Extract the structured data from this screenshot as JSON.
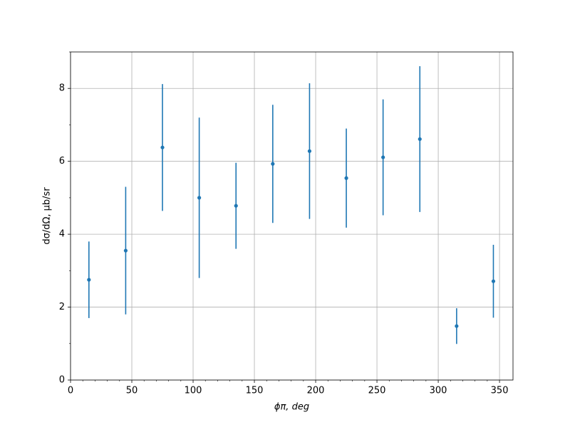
{
  "chart_data": {
    "type": "errorbar",
    "xlabel": "ϕπ, deg",
    "ylabel": "dσ/dΩ, μb/sr",
    "series": [
      {
        "color": "#1f77b4",
        "x": [
          15,
          45,
          75,
          105,
          135,
          165,
          195,
          225,
          255,
          285,
          315,
          345
        ],
        "values": [
          2.75,
          3.55,
          6.38,
          5.0,
          4.78,
          5.93,
          6.28,
          5.54,
          6.11,
          6.61,
          1.48,
          2.71
        ],
        "errors": [
          1.05,
          1.75,
          1.74,
          2.2,
          1.18,
          1.62,
          1.86,
          1.36,
          1.59,
          2.0,
          0.49,
          1.0
        ]
      }
    ],
    "xlim": [
      0,
      361
    ],
    "xticks": [
      0,
      50,
      100,
      150,
      200,
      250,
      300,
      350
    ],
    "xminorticks": [
      10,
      20,
      30,
      40,
      60,
      70,
      80,
      90,
      110,
      120,
      130,
      140,
      160,
      170,
      180,
      190,
      210,
      220,
      230,
      240,
      260,
      270,
      280,
      290,
      310,
      320,
      330,
      340
    ],
    "ylim": [
      0,
      9
    ],
    "yticks": [
      0,
      2,
      4,
      6,
      8
    ],
    "yminorticks": [
      1,
      3,
      5,
      7,
      9
    ],
    "grid": true
  }
}
